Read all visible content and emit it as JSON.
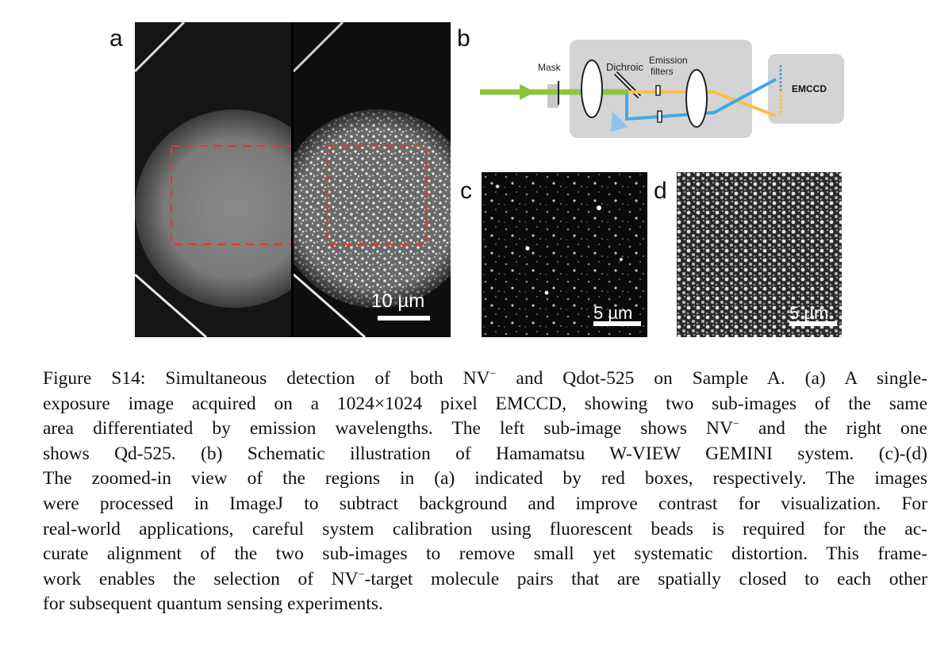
{
  "figure": {
    "panels": {
      "a": {
        "label": "a",
        "scale_bar": "10 µm",
        "left_subimage": "NV⁻",
        "right_subimage": "Qd-525"
      },
      "b": {
        "label": "b",
        "mask_label": "Mask",
        "dichroic_label": "Dichroic",
        "emission_label_line1": "Emission",
        "emission_label_line2": "filters",
        "camera_label": "EMCCD",
        "colors": {
          "excitation": "#8cc63f",
          "nv_emission": "#f7c04a",
          "qdot_emission": "#3fa9e6",
          "box": "#d4d4d4"
        }
      },
      "c": {
        "label": "c",
        "scale_bar": "5 µm"
      },
      "d": {
        "label": "d",
        "scale_bar": "5 µm"
      }
    },
    "caption": {
      "lines": [
        [
          "Figure S14:  Simultaneous detection of both NV",
          "−",
          " and Qdot-525 on Sample A. (a) A single-"
        ],
        [
          "exposure image acquired on a 1024×1024 pixel EMCCD, showing two sub-images of the same"
        ],
        [
          "area differentiated by emission wavelengths.  The left sub-image shows NV",
          "−",
          " and the right one"
        ],
        [
          "shows Qd-525.  (b) Schematic illustration of Hamamatsu W-VIEW GEMINI system.  (c)-(d)"
        ],
        [
          "The zoomed-in view of the regions in (a) indicated by red boxes, respectively.  The images"
        ],
        [
          "were processed in ImageJ to subtract background and improve contrast for visualization.  For"
        ],
        [
          "real-world applications, careful system calibration using fluorescent beads is required for the ac-"
        ],
        [
          "curate alignment of the two sub-images to remove small yet systematic distortion. This frame-"
        ],
        [
          "work enables the selection of NV",
          "−",
          "-target molecule pairs that are spatially closed to each other"
        ],
        [
          "for subsequent quantum sensing experiments."
        ]
      ]
    }
  }
}
